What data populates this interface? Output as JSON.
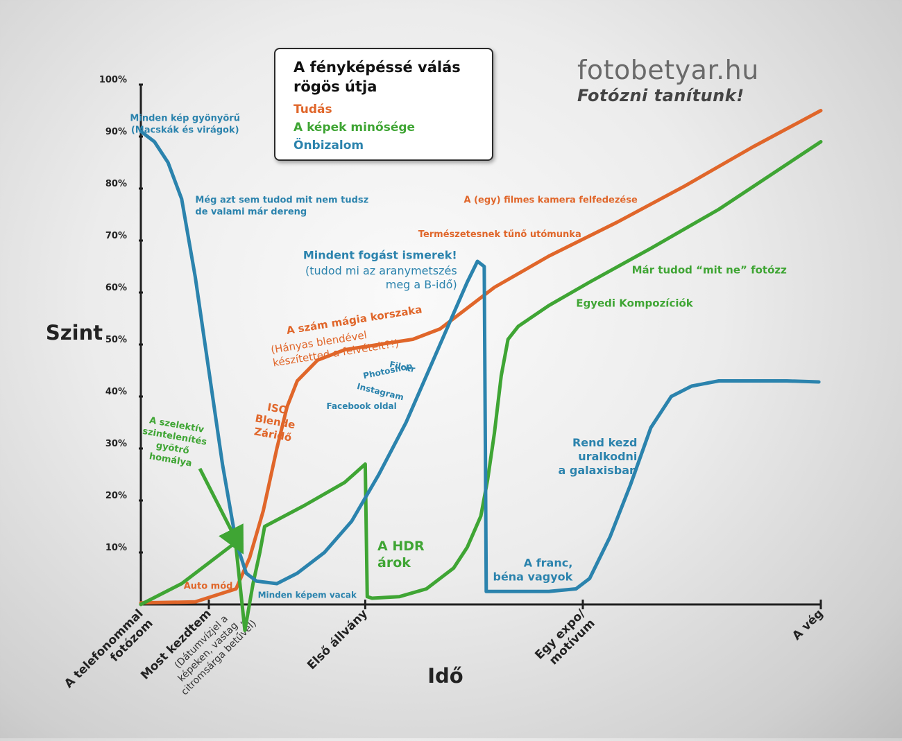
{
  "chart_data": {
    "type": "line",
    "title": "A fényképéssé válás rögös útja",
    "xlabel": "Idő",
    "ylabel": "Szint",
    "ylim": [
      0,
      100
    ],
    "y_ticks": [
      "10%",
      "20%",
      "30%",
      "40%",
      "50%",
      "60%",
      "70%",
      "80%",
      "90%",
      "100%"
    ],
    "x_ticks": [
      {
        "x": 0,
        "label": "A telefonommal fotózom",
        "bold": true
      },
      {
        "x": 10,
        "label": "Most kezdtem",
        "bold": true,
        "sub": "(Dátumvízjel a képeken, vastag , citromsárga betűvel)"
      },
      {
        "x": 33,
        "label": "Első állvány",
        "bold": true
      },
      {
        "x": 65,
        "label": "Egy expo/ motívum",
        "bold": true
      },
      {
        "x": 100,
        "label": "A vég",
        "bold": true
      }
    ],
    "grid": false,
    "legend": "top-center",
    "series": [
      {
        "name": "Tudás",
        "color": "#e0662a",
        "points": [
          [
            0,
            0.3
          ],
          [
            8,
            0.5
          ],
          [
            14,
            3
          ],
          [
            16,
            9
          ],
          [
            18,
            18
          ],
          [
            20,
            30
          ],
          [
            21.5,
            38
          ],
          [
            23,
            43
          ],
          [
            26,
            47
          ],
          [
            30,
            49
          ],
          [
            35,
            50
          ],
          [
            40,
            51
          ],
          [
            44,
            53
          ],
          [
            47,
            56
          ],
          [
            52,
            61
          ],
          [
            60,
            67
          ],
          [
            70,
            73.5
          ],
          [
            80,
            80.5
          ],
          [
            90,
            88
          ],
          [
            100,
            95
          ]
        ]
      },
      {
        "name": "A képek minősége",
        "color": "#3fa534",
        "points": [
          [
            0,
            0
          ],
          [
            6,
            4
          ],
          [
            13.5,
            11.5
          ],
          [
            14,
            11
          ],
          [
            15.3,
            -5
          ],
          [
            16.5,
            4
          ],
          [
            17.5,
            10
          ],
          [
            18.2,
            15
          ],
          [
            24,
            19
          ],
          [
            30,
            23.5
          ],
          [
            33,
            27
          ],
          [
            33.3,
            1.5
          ],
          [
            34,
            1.2
          ],
          [
            38,
            1.5
          ],
          [
            42,
            3
          ],
          [
            46,
            7
          ],
          [
            48,
            11
          ],
          [
            50,
            17
          ],
          [
            51,
            24
          ],
          [
            52,
            33
          ],
          [
            53,
            44
          ],
          [
            54,
            51
          ],
          [
            55.5,
            53.5
          ],
          [
            60,
            57.5
          ],
          [
            66,
            62
          ],
          [
            75,
            68.5
          ],
          [
            85,
            76
          ],
          [
            100,
            89
          ]
        ]
      },
      {
        "name": "Önbizalom",
        "color": "#2b83ad",
        "points": [
          [
            0,
            91
          ],
          [
            2,
            89
          ],
          [
            4,
            85
          ],
          [
            6,
            78
          ],
          [
            8,
            63
          ],
          [
            10,
            45
          ],
          [
            12,
            27
          ],
          [
            14,
            12
          ],
          [
            15.5,
            6
          ],
          [
            17,
            4.5
          ],
          [
            20,
            4
          ],
          [
            23,
            6
          ],
          [
            27,
            10
          ],
          [
            31,
            16
          ],
          [
            35,
            25
          ],
          [
            39,
            35
          ],
          [
            43,
            47
          ],
          [
            46,
            56
          ],
          [
            48,
            62
          ],
          [
            49.5,
            66
          ],
          [
            50.5,
            65
          ],
          [
            50.8,
            2.5
          ],
          [
            52,
            2.5
          ],
          [
            60,
            2.5
          ],
          [
            64,
            3
          ],
          [
            66,
            5
          ],
          [
            69,
            13
          ],
          [
            72,
            23
          ],
          [
            75,
            34
          ],
          [
            78,
            40
          ],
          [
            81,
            42
          ],
          [
            85,
            43
          ],
          [
            90,
            43
          ],
          [
            95,
            43
          ],
          [
            99.7,
            42.8
          ]
        ]
      }
    ],
    "annotations": [
      {
        "text": "Minden kép gyönyörű\n(Macskák és virágok)",
        "color": "#2b83ad",
        "bold": true,
        "anchor": "middle",
        "x": 6.5,
        "y": 93,
        "size": 13
      },
      {
        "text": "Még azt sem tudod mit nem tudsz\nde valami már dereng",
        "color": "#2b83ad",
        "bold": true,
        "anchor": "start",
        "x": 8,
        "y": 77.3,
        "size": 13
      },
      {
        "text": "Mindent fogást ismerek!",
        "color": "#2b83ad",
        "bold": true,
        "anchor": "end",
        "x": 46.5,
        "y": 66.5,
        "size": 16
      },
      {
        "text": "(tudod mi az aranymetszés\nmeg a B-idő)",
        "color": "#2b83ad",
        "bold": false,
        "anchor": "end",
        "x": 46.5,
        "y": 63.5,
        "size": 16
      },
      {
        "text": "A szám mágia korszaka",
        "color": "#e0662a",
        "bold": true,
        "anchor": "start",
        "x": 21.5,
        "y": 52,
        "size": 15,
        "rotate": -9
      },
      {
        "text": "(Hányas blendével\nkészítetted a felvételt?!)",
        "color": "#e0662a",
        "bold": false,
        "anchor": "start",
        "x": 19.2,
        "y": 48.3,
        "size": 15,
        "rotate": -9
      },
      {
        "text": "ISO\nBlende\nZáridő",
        "color": "#e0662a",
        "bold": true,
        "anchor": "middle",
        "x": 20,
        "y": 37,
        "size": 15,
        "rotate": 10
      },
      {
        "text": "A szelektív\nszintelenítés\ngyötrő\nhomálya",
        "color": "#3fa534",
        "bold": true,
        "anchor": "middle",
        "x": 5.2,
        "y": 34,
        "size": 13,
        "rotate": 10
      },
      {
        "text": "Auto mód",
        "color": "#e0662a",
        "bold": true,
        "anchor": "start",
        "x": 6.3,
        "y": 3,
        "size": 13
      },
      {
        "text": "Minden képem vacak",
        "color": "#2b83ad",
        "bold": true,
        "anchor": "start",
        "x": 17.2,
        "y": 1.3,
        "size": 12
      },
      {
        "text": "Filckr",
        "color": "#2b83ad",
        "bold": true,
        "anchor": "start",
        "x": 36.5,
        "y": 45.7,
        "size": 12,
        "rotate": 12
      },
      {
        "text": "Photoshop",
        "color": "#2b83ad",
        "bold": true,
        "anchor": "start",
        "x": 32.8,
        "y": 43.4,
        "size": 12,
        "rotate": -12
      },
      {
        "text": "Instagram",
        "color": "#2b83ad",
        "bold": true,
        "anchor": "start",
        "x": 31.7,
        "y": 41.5,
        "size": 12,
        "rotate": 14
      },
      {
        "text": "Facebook oldal",
        "color": "#2b83ad",
        "bold": true,
        "anchor": "start",
        "x": 27.3,
        "y": 37.6,
        "size": 12
      },
      {
        "text": "A HDR\nárok",
        "color": "#3fa534",
        "bold": true,
        "anchor": "start",
        "x": 34.8,
        "y": 10.4,
        "size": 19
      },
      {
        "text": "A (egy) filmes kamera felfedezése",
        "color": "#e0662a",
        "bold": true,
        "anchor": "start",
        "x": 47.5,
        "y": 77.3,
        "size": 13
      },
      {
        "text": "Természetesnek tűnő utómunka",
        "color": "#e0662a",
        "bold": true,
        "anchor": "start",
        "x": 40.8,
        "y": 70.7,
        "size": 13
      },
      {
        "text": "Már tudod “mit ne” fotózz",
        "color": "#3fa534",
        "bold": true,
        "anchor": "start",
        "x": 72.2,
        "y": 63.7,
        "size": 15
      },
      {
        "text": "Egyedi Kompozíciók",
        "color": "#3fa534",
        "bold": true,
        "anchor": "start",
        "x": 64,
        "y": 57.3,
        "size": 15
      },
      {
        "text": "Rend kezd\nuralkodni\na galaxisban",
        "color": "#2b83ad",
        "bold": true,
        "anchor": "end",
        "x": 73,
        "y": 30.4,
        "size": 16
      },
      {
        "text": "A franc,\nbéna vagyok",
        "color": "#2b83ad",
        "bold": true,
        "anchor": "end",
        "x": 63.5,
        "y": 7.3,
        "size": 16
      }
    ]
  },
  "legend": {
    "title": "A fényképéssé válás rögös útja",
    "items": [
      {
        "label": "Tudás",
        "color": "#e0662a"
      },
      {
        "label": "A képek minősége",
        "color": "#3fa534"
      },
      {
        "label": "Önbizalom",
        "color": "#2b83ad"
      }
    ]
  },
  "brand": {
    "site": "fotobetyar.hu",
    "slogan": "Fotózni tanítunk!"
  }
}
